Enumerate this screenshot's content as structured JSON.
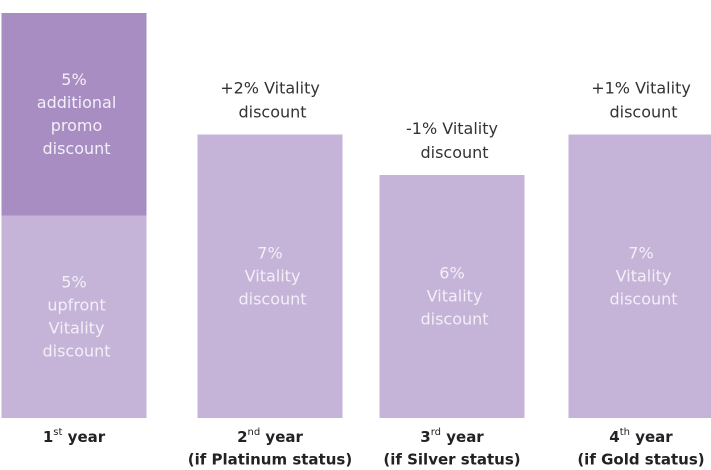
{
  "chart_data": {
    "type": "stacked-bar",
    "categories": [
      "1st year",
      "2nd year",
      "3rd year",
      "4th year"
    ],
    "category_notes": [
      null,
      "(if Platinum status)",
      "(if Silver status)",
      "(if Gold status)"
    ],
    "annotations": [
      null,
      "+2% Vitality\ndiscount",
      "-1% Vitality\ndiscount",
      "+1% Vitality\ndiscount"
    ],
    "series": [
      {
        "color": "#c6b4d8",
        "values": [
          5,
          7,
          6,
          7
        ],
        "value_labels": [
          "5%\nupfront\nVitality\ndiscount",
          "7%\nVitality\ndiscount",
          "6%\nVitality\ndiscount",
          "7%\nVitality\ndiscount"
        ]
      },
      {
        "color": "#a78dc1",
        "values": [
          5,
          null,
          null,
          null
        ],
        "value_labels": [
          "5%\nadditional\npromo\ndiscount",
          null,
          null,
          null
        ]
      }
    ],
    "ylim": [
      0,
      10
    ]
  }
}
